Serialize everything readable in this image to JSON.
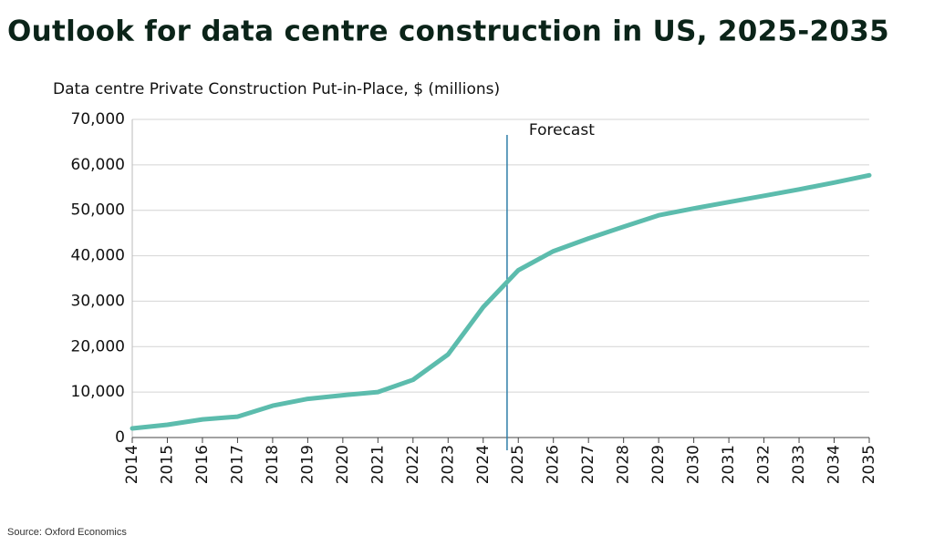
{
  "chart_data": {
    "type": "line",
    "title": "Outlook for data centre construction in US, 2025-2035",
    "y_axis_label": "Data centre Private Construction Put-in-Place, $ (millions)",
    "annotation": "Forecast",
    "source": "Source: Oxford Economics",
    "categories": [
      "2014",
      "2015",
      "2016",
      "2017",
      "2018",
      "2019",
      "2020",
      "2021",
      "2022",
      "2023",
      "2024",
      "2025",
      "2026",
      "2027",
      "2028",
      "2029",
      "2030",
      "2031",
      "2032",
      "2033",
      "2034",
      "2035"
    ],
    "values": [
      2000,
      2800,
      4000,
      4600,
      7000,
      8500,
      9300,
      10000,
      12700,
      18300,
      28700,
      36800,
      41000,
      43800,
      46400,
      48900,
      50400,
      51800,
      53200,
      54600,
      56100,
      57700
    ],
    "color": "#5cbcad",
    "ylim": [
      0,
      70000
    ],
    "yticks": [
      0,
      {
        "value": 10000,
        "label": "10,000"
      },
      {
        "value": 20000,
        "label": "20,000"
      },
      {
        "value": 30000,
        "label": "30,000"
      },
      {
        "value": 40000,
        "label": "40,000"
      },
      {
        "value": 50000,
        "label": "50,000"
      },
      {
        "value": 60000,
        "label": "60,000"
      },
      {
        "value": 70000,
        "label": "70,000"
      }
    ],
    "grid": true
  }
}
